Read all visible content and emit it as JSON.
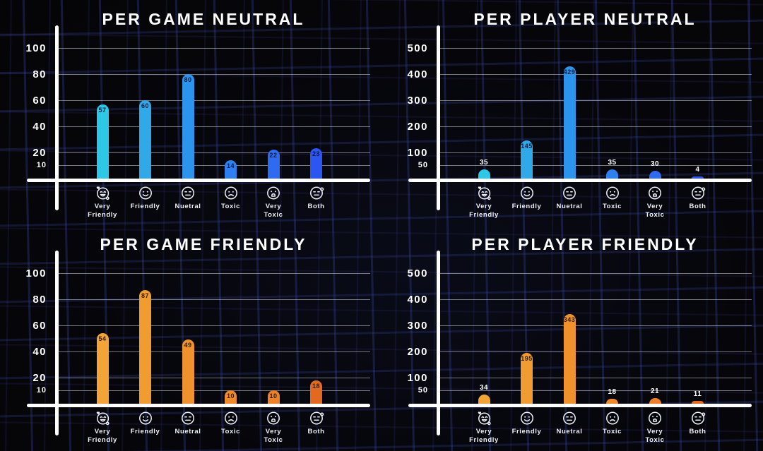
{
  "icons": [
    "very-friendly-face",
    "friendly-face",
    "neutral-face",
    "toxic-face",
    "very-toxic-face",
    "both-face"
  ],
  "category_labels": [
    [
      "Very",
      "Friendly"
    ],
    [
      "Friendly"
    ],
    [
      "Nuetral"
    ],
    [
      "Toxic"
    ],
    [
      "Very",
      "Toxic"
    ],
    [
      "Both"
    ]
  ],
  "colors": {
    "background": "#06060a",
    "background_grid_line": "#252c60",
    "axis": "#ffffff",
    "gridline": "#bcbec5",
    "title_text": "#ffffff",
    "tick_text": "#ffffff",
    "category_text": "#eef1f7",
    "icon_stroke": "#eef1f7",
    "value_outside": "#ffffff",
    "value_inside_blue": "#0c1c3e",
    "value_inside_orange": "#35210a",
    "blue_bar_palette": [
      "#2ec7e6",
      "#31a9e9",
      "#2d94ee",
      "#2e7ff0",
      "#2e6bf1",
      "#2b56f2"
    ],
    "orange_bar_palette": [
      "#f3a439",
      "#f19c31",
      "#ef922d",
      "#ee8a2b",
      "#ec8128",
      "#e2691f"
    ]
  },
  "chart_data": [
    {
      "type": "bar",
      "title": "PER GAME NEUTRAL",
      "categories": [
        "Very Friendly",
        "Friendly",
        "Nuetral",
        "Toxic",
        "Very Toxic",
        "Both"
      ],
      "values": [
        57,
        60,
        80,
        14,
        22,
        23
      ],
      "yticks": [
        10,
        20,
        40,
        60,
        80,
        100
      ],
      "ylim": [
        0,
        100
      ],
      "xlabel": "",
      "ylabel": "",
      "grid": true,
      "legend": "none",
      "palette": "blue"
    },
    {
      "type": "bar",
      "title": "PER PLAYER NEUTRAL",
      "categories": [
        "Very Friendly",
        "Friendly",
        "Nuetral",
        "Toxic",
        "Very Toxic",
        "Both"
      ],
      "values": [
        35,
        145,
        429,
        35,
        30,
        4
      ],
      "yticks": [
        50,
        100,
        200,
        300,
        400,
        500
      ],
      "ylim": [
        0,
        500
      ],
      "xlabel": "",
      "ylabel": "",
      "grid": true,
      "legend": "none",
      "palette": "blue"
    },
    {
      "type": "bar",
      "title": "PER GAME FRIENDLY",
      "categories": [
        "Very Friendly",
        "Friendly",
        "Nuetral",
        "Toxic",
        "Very Toxic",
        "Both"
      ],
      "values": [
        54,
        87,
        49,
        10,
        10,
        18
      ],
      "yticks": [
        10,
        20,
        40,
        60,
        80,
        100
      ],
      "ylim": [
        0,
        100
      ],
      "xlabel": "",
      "ylabel": "",
      "grid": true,
      "legend": "none",
      "palette": "orange"
    },
    {
      "type": "bar",
      "title": "PER PLAYER FRIENDLY",
      "categories": [
        "Very Friendly",
        "Friendly",
        "Nuetral",
        "Toxic",
        "Very Toxic",
        "Both"
      ],
      "values": [
        34,
        195,
        343,
        18,
        21,
        11
      ],
      "yticks": [
        50,
        100,
        200,
        300,
        400,
        500
      ],
      "ylim": [
        0,
        500
      ],
      "xlabel": "",
      "ylabel": "",
      "grid": true,
      "legend": "none",
      "palette": "orange"
    }
  ]
}
